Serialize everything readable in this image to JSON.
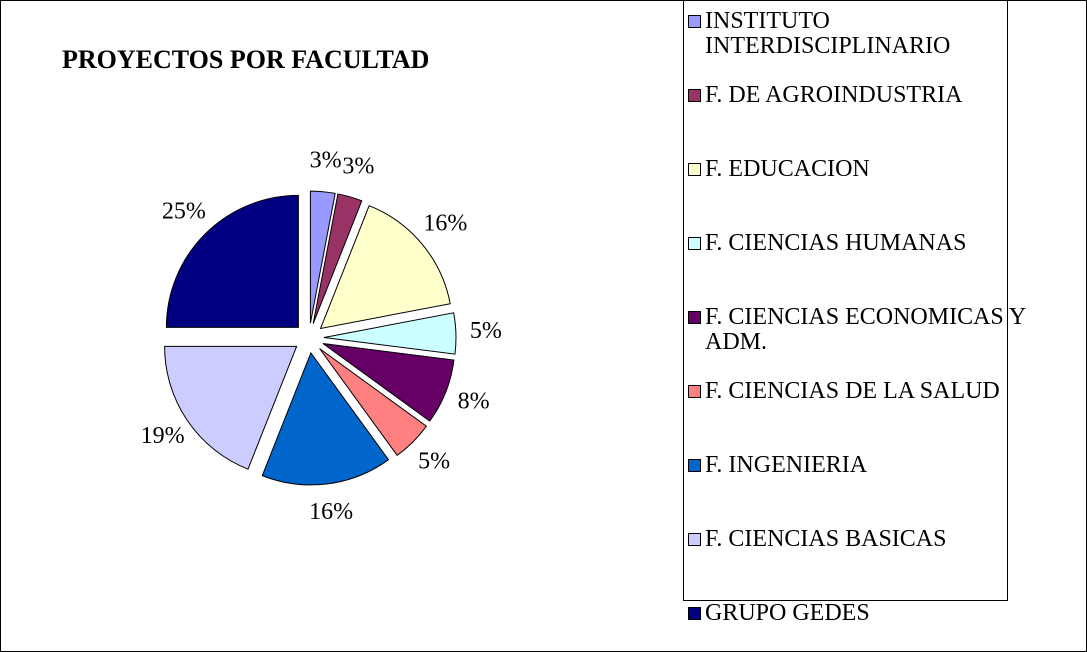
{
  "chart_data": {
    "type": "pie",
    "title": "PROYECTOS POR FACULTAD",
    "categories": [
      "INSTITUTO INTERDISCIPLINARIO",
      "F. DE AGROINDUSTRIA",
      "F. EDUCACION",
      "F. CIENCIAS HUMANAS",
      "F. CIENCIAS ECONOMICAS Y ADM.",
      "F. CIENCIAS DE LA SALUD",
      "F. INGENIERIA",
      "F. CIENCIAS BASICAS",
      "GRUPO GEDES"
    ],
    "values": [
      3,
      3,
      16,
      5,
      8,
      5,
      16,
      19,
      25
    ],
    "value_labels": [
      "3%",
      "3%",
      "16%",
      "5%",
      "8%",
      "5%",
      "16%",
      "19%",
      "25%"
    ],
    "colors": [
      "#9999ff",
      "#993366",
      "#ffffcc",
      "#ccffff",
      "#660066",
      "#ff8080",
      "#0066cc",
      "#ccccff",
      "#000080"
    ],
    "legend": "right"
  }
}
